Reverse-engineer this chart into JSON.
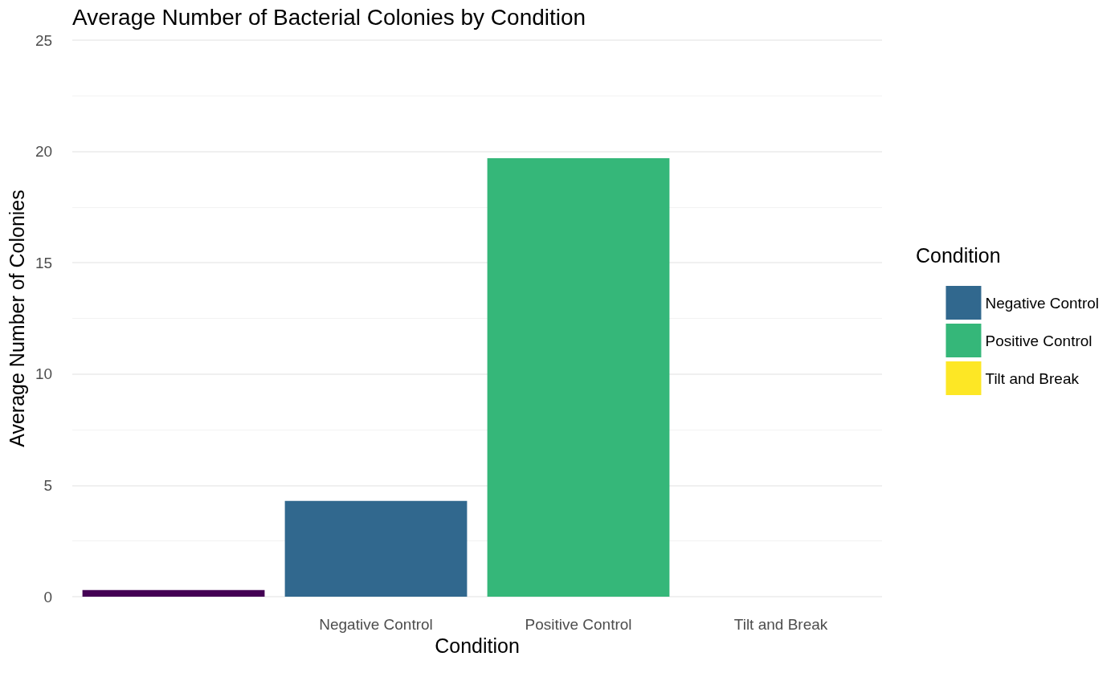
{
  "chart_data": {
    "type": "bar",
    "title": "Average Number of Bacterial Colonies by Condition",
    "xlabel": "Condition",
    "ylabel": "Average Number of Colonies",
    "legend_title": "Condition",
    "categories": [
      null,
      "Negative Control",
      "Positive Control",
      "Tilt and Break"
    ],
    "series": [
      {
        "color": "#440154",
        "values": [
          0.3,
          null,
          null,
          null
        ]
      },
      {
        "name": "Negative Control",
        "color": "#31688e",
        "values": [
          null,
          4.3,
          null,
          null
        ]
      },
      {
        "name": "Positive Control",
        "color": "#35b779",
        "values": [
          null,
          null,
          19.7,
          null
        ]
      },
      {
        "name": "Tilt and Break",
        "color": "#fde725",
        "values": [
          null,
          null,
          null,
          0
        ]
      }
    ],
    "ylim": [
      0,
      25
    ],
    "yticks": [
      0,
      5,
      10,
      15,
      20,
      25
    ],
    "grid": "y",
    "legend": "right"
  }
}
